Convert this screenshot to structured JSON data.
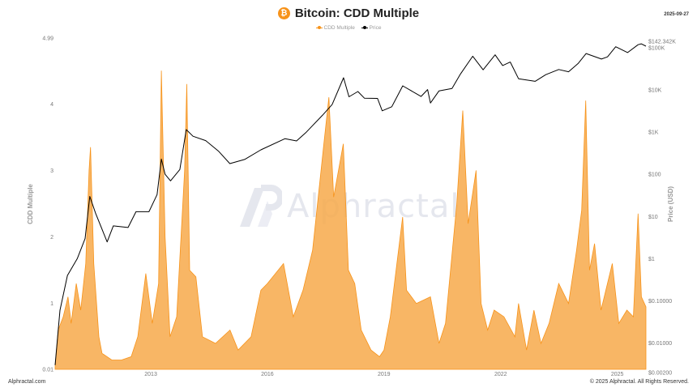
{
  "header": {
    "title": "Bitcoin: CDD Multiple",
    "date": "2025-09-27",
    "icon": "bitcoin-icon"
  },
  "legend": {
    "items": [
      {
        "label": "CDD Multiple",
        "color": "#f7931a"
      },
      {
        "label": "Price",
        "color": "#000000"
      }
    ]
  },
  "footer": {
    "left": "Alphractal.com",
    "right": "© 2025 Alphractal. All Rights Reserved."
  },
  "watermark": {
    "text": "Alphractal"
  },
  "chart_data": {
    "type": "area",
    "title": "Bitcoin: CDD Multiple",
    "date_range": [
      "2010-07-17",
      "2025-09-27"
    ],
    "grid": false,
    "legend_position": "top-center",
    "left_axis": {
      "label": "CDD Multiple",
      "ylim": [
        0.01,
        4.99
      ],
      "ticks": [
        "0.01",
        "1",
        "2",
        "3",
        "4",
        "4.99"
      ],
      "tick_values": [
        0.01,
        1,
        2,
        3,
        4,
        4.99
      ]
    },
    "right_axis": {
      "label": "Price (USD)",
      "scale": "log",
      "ticks": [
        "$0.00200",
        "$0.01000",
        "$0.10000",
        "$1",
        "$10",
        "$100",
        "$1K",
        "$10K",
        "$100K",
        "$142.342K"
      ],
      "tick_values": [
        0.002,
        0.01,
        0.1,
        1,
        10,
        100,
        1000,
        10000,
        100000,
        142342
      ]
    },
    "x_axis": {
      "ticks": [
        "2013",
        "2016",
        "2019",
        "2022",
        "2025"
      ],
      "tick_dates": [
        "2013-01-01",
        "2016-01-01",
        "2019-01-01",
        "2022-01-01",
        "2025-01-01"
      ]
    },
    "series": [
      {
        "name": "CDD Multiple",
        "color": "#f7931a",
        "style": "area",
        "axis": "left",
        "points": [
          [
            "2010-07-17",
            0.05
          ],
          [
            "2010-08-15",
            0.6
          ],
          [
            "2010-10-01",
            0.8
          ],
          [
            "2010-11-15",
            1.1
          ],
          [
            "2010-12-15",
            0.7
          ],
          [
            "2011-02-01",
            1.3
          ],
          [
            "2011-03-15",
            0.9
          ],
          [
            "2011-05-01",
            1.6
          ],
          [
            "2011-06-01",
            3.0
          ],
          [
            "2011-06-15",
            3.35
          ],
          [
            "2011-07-15",
            1.6
          ],
          [
            "2011-09-01",
            0.5
          ],
          [
            "2011-10-01",
            0.25
          ],
          [
            "2012-01-01",
            0.15
          ],
          [
            "2012-04-01",
            0.15
          ],
          [
            "2012-07-01",
            0.2
          ],
          [
            "2012-09-01",
            0.5
          ],
          [
            "2012-11-15",
            1.45
          ],
          [
            "2013-01-15",
            0.7
          ],
          [
            "2013-03-15",
            1.3
          ],
          [
            "2013-04-10",
            4.5
          ],
          [
            "2013-05-15",
            2.0
          ],
          [
            "2013-07-01",
            0.5
          ],
          [
            "2013-09-01",
            0.8
          ],
          [
            "2013-11-15",
            3.0
          ],
          [
            "2013-12-05",
            4.3
          ],
          [
            "2014-01-01",
            1.5
          ],
          [
            "2014-03-01",
            1.4
          ],
          [
            "2014-05-01",
            0.5
          ],
          [
            "2014-09-01",
            0.4
          ],
          [
            "2015-01-15",
            0.6
          ],
          [
            "2015-04-01",
            0.3
          ],
          [
            "2015-08-01",
            0.5
          ],
          [
            "2015-11-01",
            1.2
          ],
          [
            "2016-01-01",
            1.3
          ],
          [
            "2016-06-01",
            1.6
          ],
          [
            "2016-09-01",
            0.8
          ],
          [
            "2016-12-01",
            1.2
          ],
          [
            "2017-03-01",
            1.8
          ],
          [
            "2017-06-15",
            3.4
          ],
          [
            "2017-08-01",
            4.1
          ],
          [
            "2017-09-15",
            2.6
          ],
          [
            "2017-12-15",
            3.4
          ],
          [
            "2018-02-01",
            1.5
          ],
          [
            "2018-04-01",
            1.3
          ],
          [
            "2018-06-01",
            0.6
          ],
          [
            "2018-09-01",
            0.3
          ],
          [
            "2018-11-20",
            0.2
          ],
          [
            "2019-01-01",
            0.3
          ],
          [
            "2019-03-01",
            0.8
          ],
          [
            "2019-06-25",
            2.3
          ],
          [
            "2019-08-01",
            1.2
          ],
          [
            "2019-11-01",
            1.0
          ],
          [
            "2020-03-12",
            1.1
          ],
          [
            "2020-06-01",
            0.4
          ],
          [
            "2020-08-01",
            0.7
          ],
          [
            "2020-11-15",
            2.5
          ],
          [
            "2021-01-10",
            3.9
          ],
          [
            "2021-03-01",
            2.2
          ],
          [
            "2021-05-15",
            3.0
          ],
          [
            "2021-07-01",
            1.0
          ],
          [
            "2021-09-01",
            0.6
          ],
          [
            "2021-11-01",
            0.9
          ],
          [
            "2022-02-01",
            0.8
          ],
          [
            "2022-05-15",
            0.5
          ],
          [
            "2022-06-18",
            1.0
          ],
          [
            "2022-09-01",
            0.3
          ],
          [
            "2022-11-10",
            0.9
          ],
          [
            "2023-01-15",
            0.4
          ],
          [
            "2023-04-01",
            0.7
          ],
          [
            "2023-07-01",
            1.3
          ],
          [
            "2023-10-01",
            1.0
          ],
          [
            "2023-12-15",
            1.8
          ],
          [
            "2024-02-01",
            2.4
          ],
          [
            "2024-03-10",
            4.05
          ],
          [
            "2024-04-15",
            1.5
          ],
          [
            "2024-06-01",
            1.9
          ],
          [
            "2024-08-01",
            0.9
          ],
          [
            "2024-11-15",
            1.6
          ],
          [
            "2025-01-15",
            0.7
          ],
          [
            "2025-04-01",
            0.9
          ],
          [
            "2025-06-01",
            0.8
          ],
          [
            "2025-07-15",
            2.35
          ],
          [
            "2025-08-15",
            1.1
          ],
          [
            "2025-09-27",
            0.95
          ]
        ]
      },
      {
        "name": "Price",
        "color": "#000000",
        "style": "line",
        "axis": "right",
        "points": [
          [
            "2010-07-17",
            0.003
          ],
          [
            "2010-09-01",
            0.06
          ],
          [
            "2010-11-10",
            0.4
          ],
          [
            "2011-02-10",
            1.0
          ],
          [
            "2011-04-25",
            3.0
          ],
          [
            "2011-06-08",
            30
          ],
          [
            "2011-08-01",
            12
          ],
          [
            "2011-11-18",
            2.5
          ],
          [
            "2012-01-15",
            6
          ],
          [
            "2012-06-01",
            5.5
          ],
          [
            "2012-08-15",
            13
          ],
          [
            "2012-12-15",
            13
          ],
          [
            "2013-03-01",
            33
          ],
          [
            "2013-04-10",
            230
          ],
          [
            "2013-05-15",
            100
          ],
          [
            "2013-07-05",
            70
          ],
          [
            "2013-10-01",
            130
          ],
          [
            "2013-11-30",
            1150
          ],
          [
            "2014-02-01",
            800
          ],
          [
            "2014-06-01",
            630
          ],
          [
            "2014-10-01",
            350
          ],
          [
            "2015-01-14",
            180
          ],
          [
            "2015-06-01",
            225
          ],
          [
            "2015-11-01",
            380
          ],
          [
            "2016-06-15",
            700
          ],
          [
            "2016-10-01",
            620
          ],
          [
            "2017-01-01",
            1000
          ],
          [
            "2017-06-01",
            2500
          ],
          [
            "2017-09-01",
            4500
          ],
          [
            "2017-12-17",
            19500
          ],
          [
            "2018-02-06",
            6900
          ],
          [
            "2018-05-01",
            9200
          ],
          [
            "2018-07-01",
            6400
          ],
          [
            "2018-11-01",
            6300
          ],
          [
            "2018-12-15",
            3200
          ],
          [
            "2019-03-15",
            4000
          ],
          [
            "2019-06-26",
            12500
          ],
          [
            "2019-09-01",
            10000
          ],
          [
            "2019-12-15",
            7000
          ],
          [
            "2020-02-15",
            10200
          ],
          [
            "2020-03-12",
            4900
          ],
          [
            "2020-06-01",
            9500
          ],
          [
            "2020-10-01",
            10800
          ],
          [
            "2020-12-20",
            24000
          ],
          [
            "2021-04-14",
            63000
          ],
          [
            "2021-07-20",
            30000
          ],
          [
            "2021-11-10",
            68000
          ],
          [
            "2022-01-20",
            38000
          ],
          [
            "2022-04-01",
            46000
          ],
          [
            "2022-06-18",
            18500
          ],
          [
            "2022-11-21",
            16000
          ],
          [
            "2023-03-01",
            23000
          ],
          [
            "2023-07-01",
            30500
          ],
          [
            "2023-10-01",
            27000
          ],
          [
            "2024-01-01",
            43000
          ],
          [
            "2024-03-14",
            73000
          ],
          [
            "2024-08-05",
            54000
          ],
          [
            "2024-10-01",
            61000
          ],
          [
            "2024-12-17",
            106000
          ],
          [
            "2025-04-08",
            77000
          ],
          [
            "2025-07-15",
            118000
          ],
          [
            "2025-08-14",
            124000
          ],
          [
            "2025-09-27",
            109000
          ]
        ]
      }
    ]
  }
}
